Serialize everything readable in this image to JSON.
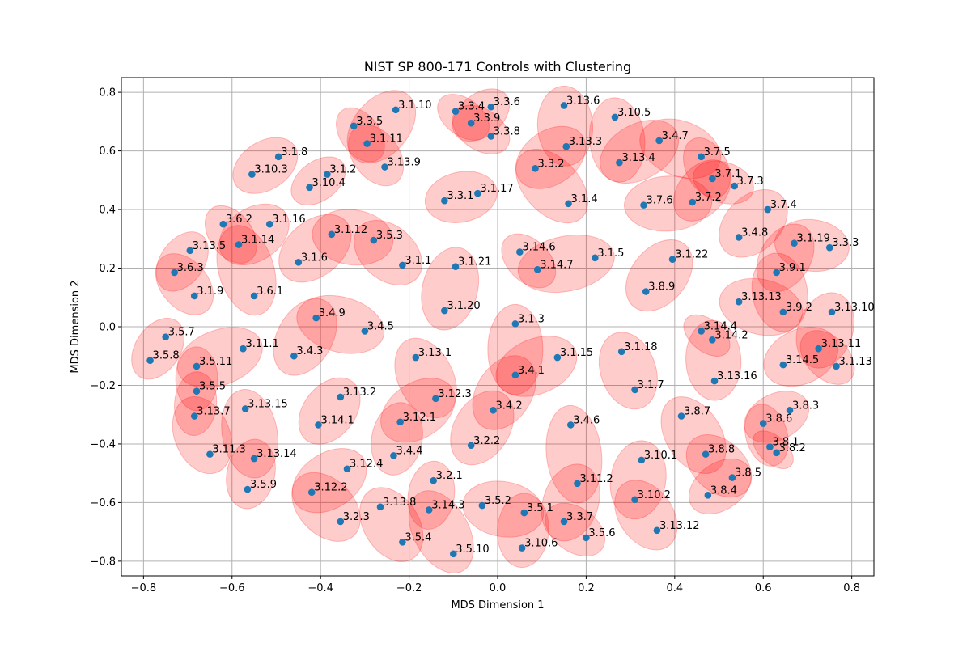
{
  "chart_data": {
    "type": "scatter",
    "title": "NIST SP 800-171 Controls with Clustering",
    "xlabel": "MDS Dimension 1",
    "ylabel": "MDS Dimension 2",
    "xlim": [
      -0.85,
      0.85
    ],
    "ylim": [
      -0.85,
      0.85
    ],
    "xticks": [
      -0.8,
      -0.6,
      -0.4,
      -0.2,
      0.0,
      0.2,
      0.4,
      0.6,
      0.8
    ],
    "yticks": [
      -0.8,
      -0.6,
      -0.4,
      -0.2,
      0.0,
      0.2,
      0.4,
      0.6,
      0.8
    ],
    "xtick_labels": [
      "−0.8",
      "−0.6",
      "−0.4",
      "−0.2",
      "0.0",
      "0.2",
      "0.4",
      "0.6",
      "0.8"
    ],
    "ytick_labels": [
      "−0.8",
      "−0.6",
      "−0.4",
      "−0.2",
      "0.0",
      "0.2",
      "0.4",
      "0.6",
      "0.8"
    ],
    "grid": true,
    "point_color": "#1f77b4",
    "ellipse_color": "#ff0000",
    "ellipse_opacity": 0.2,
    "points": [
      {
        "label": "3.1.1",
        "x": -0.215,
        "y": 0.21
      },
      {
        "label": "3.1.2",
        "x": -0.385,
        "y": 0.52
      },
      {
        "label": "3.1.3",
        "x": 0.04,
        "y": 0.01
      },
      {
        "label": "3.1.4",
        "x": 0.16,
        "y": 0.42
      },
      {
        "label": "3.1.5",
        "x": 0.22,
        "y": 0.235
      },
      {
        "label": "3.1.6",
        "x": -0.45,
        "y": 0.22
      },
      {
        "label": "3.1.7",
        "x": 0.31,
        "y": -0.215
      },
      {
        "label": "3.1.8",
        "x": -0.495,
        "y": 0.58
      },
      {
        "label": "3.1.9",
        "x": -0.685,
        "y": 0.105
      },
      {
        "label": "3.1.10",
        "x": -0.23,
        "y": 0.74
      },
      {
        "label": "3.1.11",
        "x": -0.295,
        "y": 0.625
      },
      {
        "label": "3.1.12",
        "x": -0.375,
        "y": 0.315
      },
      {
        "label": "3.1.13",
        "x": 0.765,
        "y": -0.135
      },
      {
        "label": "3.1.14",
        "x": -0.585,
        "y": 0.28
      },
      {
        "label": "3.1.15",
        "x": 0.135,
        "y": -0.105
      },
      {
        "label": "3.1.16",
        "x": -0.515,
        "y": 0.35
      },
      {
        "label": "3.1.17",
        "x": -0.045,
        "y": 0.455
      },
      {
        "label": "3.1.18",
        "x": 0.28,
        "y": -0.085
      },
      {
        "label": "3.1.19",
        "x": 0.67,
        "y": 0.285
      },
      {
        "label": "3.1.20",
        "x": -0.12,
        "y": 0.055
      },
      {
        "label": "3.1.21",
        "x": -0.095,
        "y": 0.205
      },
      {
        "label": "3.1.22",
        "x": 0.395,
        "y": 0.23
      },
      {
        "label": "3.2.1",
        "x": -0.145,
        "y": -0.525
      },
      {
        "label": "3.2.2",
        "x": -0.06,
        "y": -0.405
      },
      {
        "label": "3.2.3",
        "x": -0.355,
        "y": -0.665
      },
      {
        "label": "3.3.1",
        "x": -0.12,
        "y": 0.43
      },
      {
        "label": "3.3.2",
        "x": 0.085,
        "y": 0.54
      },
      {
        "label": "3.3.3",
        "x": 0.75,
        "y": 0.27
      },
      {
        "label": "3.3.4",
        "x": -0.095,
        "y": 0.735
      },
      {
        "label": "3.3.5",
        "x": -0.325,
        "y": 0.685
      },
      {
        "label": "3.3.6",
        "x": -0.015,
        "y": 0.75
      },
      {
        "label": "3.3.7",
        "x": 0.15,
        "y": -0.665
      },
      {
        "label": "3.3.8",
        "x": -0.015,
        "y": 0.65
      },
      {
        "label": "3.3.9",
        "x": -0.06,
        "y": 0.695
      },
      {
        "label": "3.4.1",
        "x": 0.04,
        "y": -0.165
      },
      {
        "label": "3.4.2",
        "x": -0.01,
        "y": -0.285
      },
      {
        "label": "3.4.3",
        "x": -0.46,
        "y": -0.1
      },
      {
        "label": "3.4.4",
        "x": -0.235,
        "y": -0.44
      },
      {
        "label": "3.4.5",
        "x": -0.3,
        "y": -0.015
      },
      {
        "label": "3.4.6",
        "x": 0.165,
        "y": -0.335
      },
      {
        "label": "3.4.7",
        "x": 0.365,
        "y": 0.635
      },
      {
        "label": "3.4.8",
        "x": 0.545,
        "y": 0.305
      },
      {
        "label": "3.4.9",
        "x": -0.41,
        "y": 0.03
      },
      {
        "label": "3.5.1",
        "x": 0.06,
        "y": -0.635
      },
      {
        "label": "3.5.2",
        "x": -0.035,
        "y": -0.61
      },
      {
        "label": "3.5.3",
        "x": -0.28,
        "y": 0.295
      },
      {
        "label": "3.5.4",
        "x": -0.215,
        "y": -0.735
      },
      {
        "label": "3.5.5",
        "x": -0.68,
        "y": -0.22
      },
      {
        "label": "3.5.6",
        "x": 0.2,
        "y": -0.72
      },
      {
        "label": "3.5.7",
        "x": -0.75,
        "y": -0.035
      },
      {
        "label": "3.5.8",
        "x": -0.785,
        "y": -0.115
      },
      {
        "label": "3.5.9",
        "x": -0.565,
        "y": -0.555
      },
      {
        "label": "3.5.10",
        "x": -0.1,
        "y": -0.775
      },
      {
        "label": "3.5.11",
        "x": -0.68,
        "y": -0.135
      },
      {
        "label": "3.6.1",
        "x": -0.55,
        "y": 0.105
      },
      {
        "label": "3.6.2",
        "x": -0.62,
        "y": 0.35
      },
      {
        "label": "3.6.3",
        "x": -0.73,
        "y": 0.185
      },
      {
        "label": "3.7.1",
        "x": 0.485,
        "y": 0.505
      },
      {
        "label": "3.7.2",
        "x": 0.44,
        "y": 0.425
      },
      {
        "label": "3.7.3",
        "x": 0.535,
        "y": 0.48
      },
      {
        "label": "3.7.4",
        "x": 0.61,
        "y": 0.4
      },
      {
        "label": "3.7.5",
        "x": 0.46,
        "y": 0.58
      },
      {
        "label": "3.7.6",
        "x": 0.33,
        "y": 0.415
      },
      {
        "label": "3.8.1",
        "x": 0.615,
        "y": -0.41
      },
      {
        "label": "3.8.2",
        "x": 0.63,
        "y": -0.43
      },
      {
        "label": "3.8.3",
        "x": 0.66,
        "y": -0.285
      },
      {
        "label": "3.8.4",
        "x": 0.475,
        "y": -0.575
      },
      {
        "label": "3.8.5",
        "x": 0.53,
        "y": -0.515
      },
      {
        "label": "3.8.6",
        "x": 0.6,
        "y": -0.33
      },
      {
        "label": "3.8.7",
        "x": 0.415,
        "y": -0.305
      },
      {
        "label": "3.8.8",
        "x": 0.47,
        "y": -0.435
      },
      {
        "label": "3.8.9",
        "x": 0.335,
        "y": 0.12
      },
      {
        "label": "3.9.1",
        "x": 0.63,
        "y": 0.185
      },
      {
        "label": "3.9.2",
        "x": 0.645,
        "y": 0.05
      },
      {
        "label": "3.10.1",
        "x": 0.325,
        "y": -0.455
      },
      {
        "label": "3.10.2",
        "x": 0.31,
        "y": -0.59
      },
      {
        "label": "3.10.3",
        "x": -0.555,
        "y": 0.52
      },
      {
        "label": "3.10.4",
        "x": -0.425,
        "y": 0.475
      },
      {
        "label": "3.10.5",
        "x": 0.265,
        "y": 0.715
      },
      {
        "label": "3.10.6",
        "x": 0.055,
        "y": -0.755
      },
      {
        "label": "3.11.1",
        "x": -0.575,
        "y": -0.075
      },
      {
        "label": "3.11.2",
        "x": 0.18,
        "y": -0.535
      },
      {
        "label": "3.11.3",
        "x": -0.65,
        "y": -0.435
      },
      {
        "label": "3.12.1",
        "x": -0.22,
        "y": -0.325
      },
      {
        "label": "3.12.2",
        "x": -0.42,
        "y": -0.565
      },
      {
        "label": "3.12.3",
        "x": -0.14,
        "y": -0.245
      },
      {
        "label": "3.12.4",
        "x": -0.34,
        "y": -0.485
      },
      {
        "label": "3.13.1",
        "x": -0.185,
        "y": -0.105
      },
      {
        "label": "3.13.2",
        "x": -0.355,
        "y": -0.24
      },
      {
        "label": "3.13.3",
        "x": 0.155,
        "y": 0.615
      },
      {
        "label": "3.13.4",
        "x": 0.275,
        "y": 0.56
      },
      {
        "label": "3.13.5",
        "x": -0.695,
        "y": 0.26
      },
      {
        "label": "3.13.6",
        "x": 0.15,
        "y": 0.755
      },
      {
        "label": "3.13.7",
        "x": -0.685,
        "y": -0.305
      },
      {
        "label": "3.13.8",
        "x": -0.265,
        "y": -0.615
      },
      {
        "label": "3.13.9",
        "x": -0.255,
        "y": 0.545
      },
      {
        "label": "3.13.10",
        "x": 0.755,
        "y": 0.05
      },
      {
        "label": "3.13.11",
        "x": 0.725,
        "y": -0.075
      },
      {
        "label": "3.13.12",
        "x": 0.36,
        "y": -0.695
      },
      {
        "label": "3.13.13",
        "x": 0.545,
        "y": 0.085
      },
      {
        "label": "3.13.14",
        "x": -0.55,
        "y": -0.45
      },
      {
        "label": "3.13.15",
        "x": -0.57,
        "y": -0.28
      },
      {
        "label": "3.13.16",
        "x": 0.49,
        "y": -0.185
      },
      {
        "label": "3.14.1",
        "x": -0.405,
        "y": -0.335
      },
      {
        "label": "3.14.2",
        "x": 0.485,
        "y": -0.045
      },
      {
        "label": "3.14.3",
        "x": -0.155,
        "y": -0.625
      },
      {
        "label": "3.14.4",
        "x": 0.46,
        "y": -0.015
      },
      {
        "label": "3.14.5",
        "x": 0.645,
        "y": -0.13
      },
      {
        "label": "3.14.6",
        "x": 0.05,
        "y": 0.255
      },
      {
        "label": "3.14.7",
        "x": 0.09,
        "y": 0.195
      }
    ]
  }
}
